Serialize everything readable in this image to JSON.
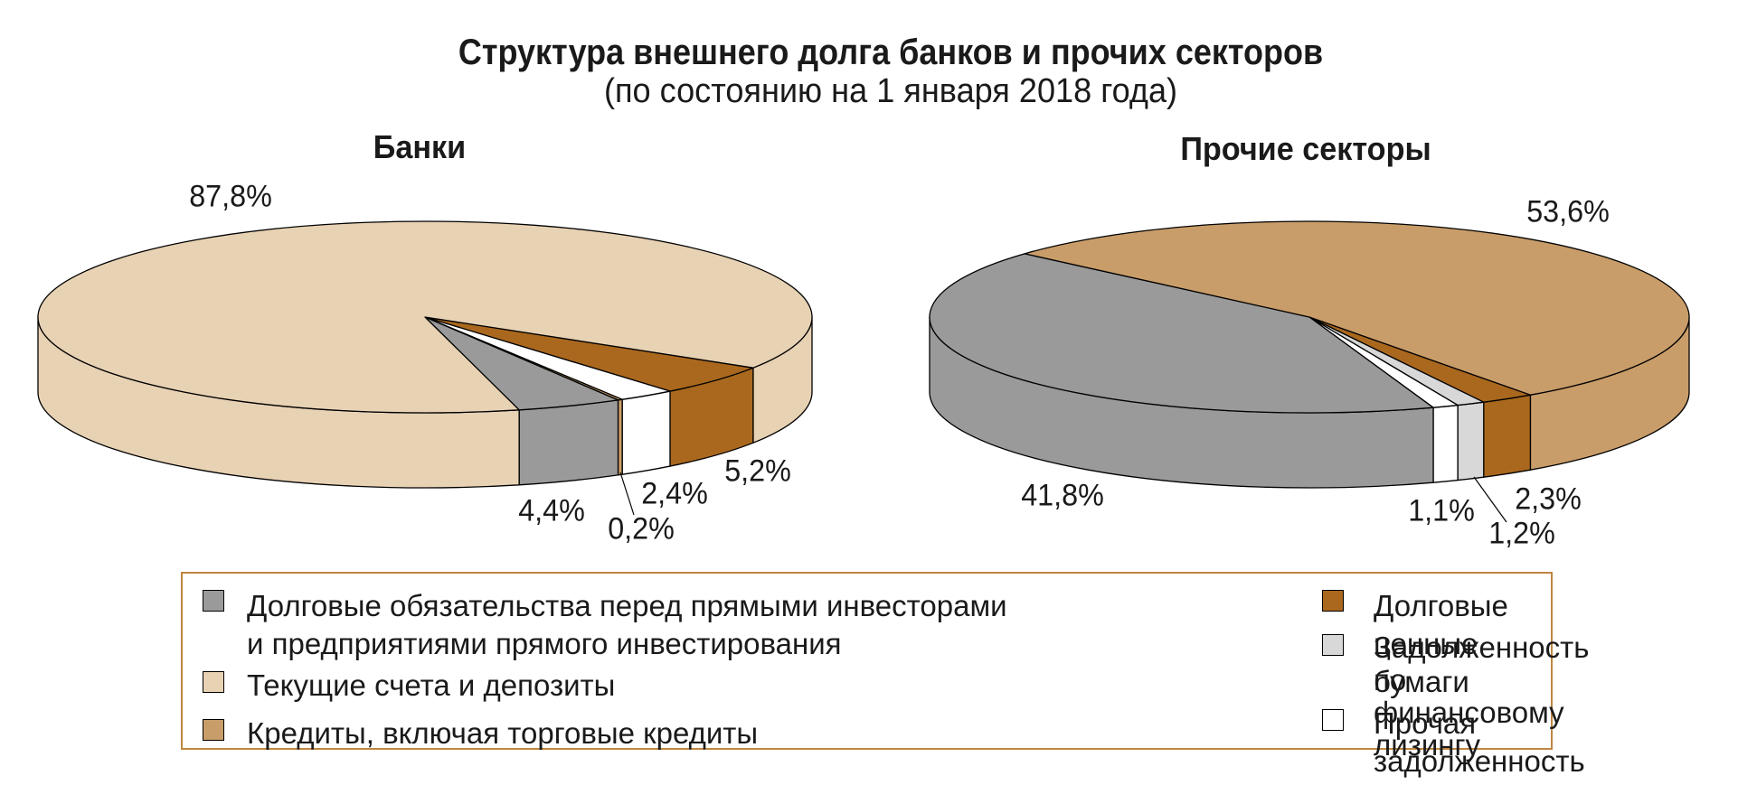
{
  "title": "Структура внешнего долга банков и прочих секторов",
  "subtitle": "(по состоянию на 1 января 2018 года)",
  "colors": {
    "gray": "#9A9A9A",
    "beige": "#E8D2B4",
    "tan": "#C99D69",
    "brown": "#AA681E",
    "lightgray": "#D8D8D8",
    "white": "#FFFFFF",
    "outline": "#000000",
    "legend_border": "#BF8640"
  },
  "chart_data": [
    {
      "type": "pie",
      "title": "Банки",
      "unit": "%",
      "slices": [
        {
          "name": "Долговые ценные бумаги",
          "value": 5.2,
          "label": "5,2%",
          "color": "brown"
        },
        {
          "name": "Прочая задолженность",
          "value": 2.4,
          "label": "2,4%",
          "color": "white"
        },
        {
          "name": "Кредиты, включая торговые кредиты",
          "value": 0.2,
          "label": "0,2%",
          "color": "tan"
        },
        {
          "name": "Долговые обязательства перед прямыми инвесторами и предприятиями прямого инвестирования",
          "value": 4.4,
          "label": "4,4%",
          "color": "gray"
        },
        {
          "name": "Текущие счета и депозиты",
          "value": 87.8,
          "label": "87,8%",
          "color": "beige"
        }
      ]
    },
    {
      "type": "pie",
      "title": "Прочие секторы",
      "unit": "%",
      "slices": [
        {
          "name": "Долговые ценные бумаги",
          "value": 2.3,
          "label": "2,3%",
          "color": "brown"
        },
        {
          "name": "Задолженность по финансовому лизингу",
          "value": 1.2,
          "label": "1,2%",
          "color": "lightgray"
        },
        {
          "name": "Прочая задолженность",
          "value": 1.1,
          "label": "1,1%",
          "color": "white"
        },
        {
          "name": "Долговые обязательства перед прямыми инвесторами и предприятиями прямого инвестирования",
          "value": 41.8,
          "label": "41,8%",
          "color": "gray"
        },
        {
          "name": "Кредиты, включая торговые кредиты",
          "value": 53.6,
          "label": "53,6%",
          "color": "tan"
        }
      ]
    }
  ],
  "legend": {
    "columns": [
      [
        {
          "color": "gray",
          "lines": [
            "Долговые обязательства перед прямыми инвесторами",
            "и предприятиями прямого инвестирования"
          ]
        },
        {
          "color": "beige",
          "lines": [
            "Текущие счета и депозиты"
          ]
        },
        {
          "color": "tan",
          "lines": [
            "Кредиты, включая торговые кредиты"
          ]
        }
      ],
      [
        {
          "color": "brown",
          "lines": [
            "Долговые ценные бумаги"
          ]
        },
        {
          "color": "lightgray",
          "lines": [
            "Задолженность",
            "по финансовому лизингу"
          ]
        },
        {
          "color": "white",
          "lines": [
            "Прочая задолженность"
          ]
        }
      ]
    ]
  }
}
